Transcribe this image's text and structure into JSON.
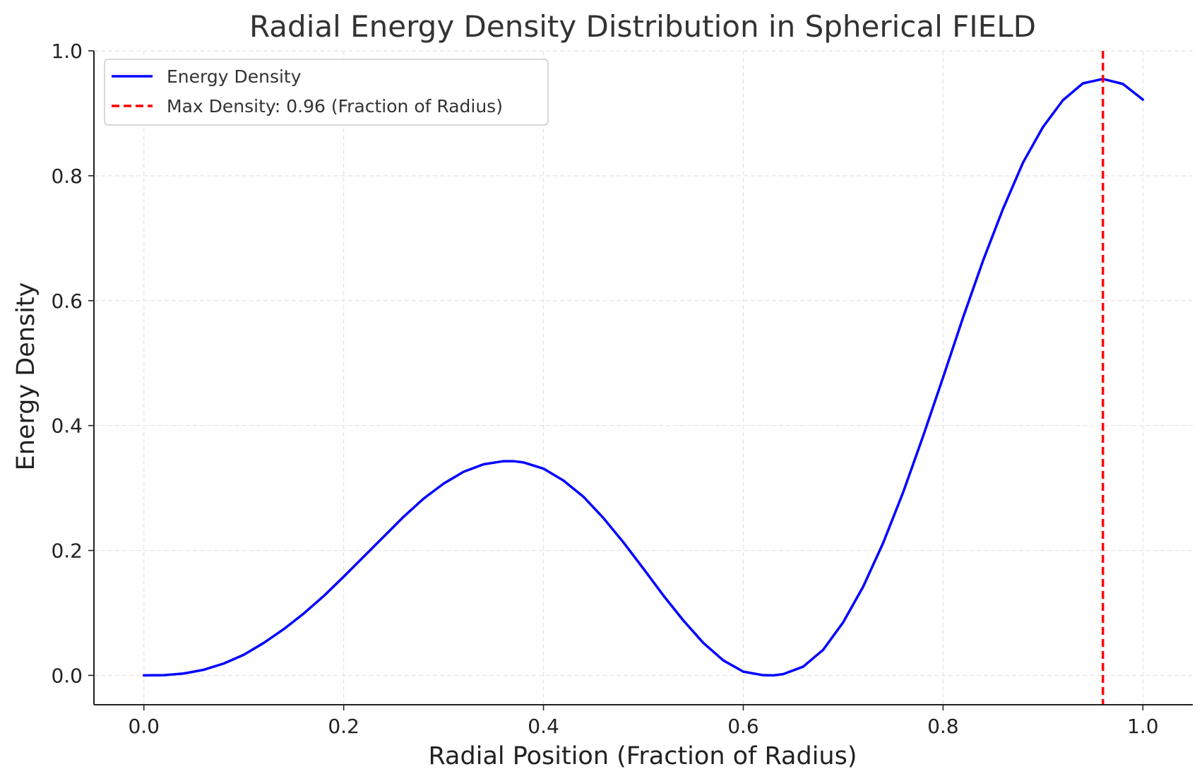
{
  "chart_data": {
    "type": "line",
    "title": "Radial Energy Density Distribution in Spherical FIELD",
    "xlabel": "Radial Position (Fraction of Radius)",
    "ylabel": "Energy Density",
    "xlim": [
      -0.05,
      1.05
    ],
    "ylim": [
      -0.047,
      1.0
    ],
    "xticks": [
      0.0,
      0.2,
      0.4,
      0.6,
      0.8,
      1.0
    ],
    "xtick_labels": [
      "0.0",
      "0.2",
      "0.4",
      "0.6",
      "0.8",
      "1.0"
    ],
    "yticks": [
      0.0,
      0.2,
      0.4,
      0.6,
      0.8,
      1.0
    ],
    "ytick_labels": [
      "0.0",
      "0.2",
      "0.4",
      "0.6",
      "0.8",
      "1.0"
    ],
    "grid": true,
    "legend_position": "upper left",
    "series": [
      {
        "name": "Energy Density",
        "color": "#0000ff",
        "style": "solid",
        "x": [
          0.0,
          0.02,
          0.04,
          0.06,
          0.08,
          0.1,
          0.12,
          0.14,
          0.16,
          0.18,
          0.2,
          0.22,
          0.24,
          0.26,
          0.28,
          0.3,
          0.32,
          0.34,
          0.36,
          0.37,
          0.38,
          0.4,
          0.42,
          0.44,
          0.46,
          0.48,
          0.5,
          0.52,
          0.54,
          0.56,
          0.58,
          0.6,
          0.62,
          0.63,
          0.64,
          0.66,
          0.68,
          0.7,
          0.72,
          0.74,
          0.76,
          0.78,
          0.8,
          0.82,
          0.84,
          0.86,
          0.88,
          0.9,
          0.92,
          0.94,
          0.96,
          0.98,
          1.0
        ],
        "y": [
          0.0,
          0.0004,
          0.003,
          0.009,
          0.019,
          0.033,
          0.052,
          0.074,
          0.099,
          0.127,
          0.158,
          0.19,
          0.222,
          0.254,
          0.283,
          0.307,
          0.326,
          0.338,
          0.343,
          0.343,
          0.341,
          0.331,
          0.312,
          0.286,
          0.252,
          0.213,
          0.171,
          0.128,
          0.088,
          0.052,
          0.024,
          0.006,
          0.0003,
          0.0,
          0.002,
          0.014,
          0.041,
          0.085,
          0.142,
          0.212,
          0.293,
          0.383,
          0.477,
          0.573,
          0.664,
          0.747,
          0.821,
          0.878,
          0.921,
          0.948,
          0.955,
          0.947,
          0.922
        ]
      }
    ],
    "vline": {
      "x": 0.96,
      "name": "Max Density: 0.96 (Fraction of Radius)",
      "color": "#ff0000",
      "style": "dashed"
    }
  }
}
